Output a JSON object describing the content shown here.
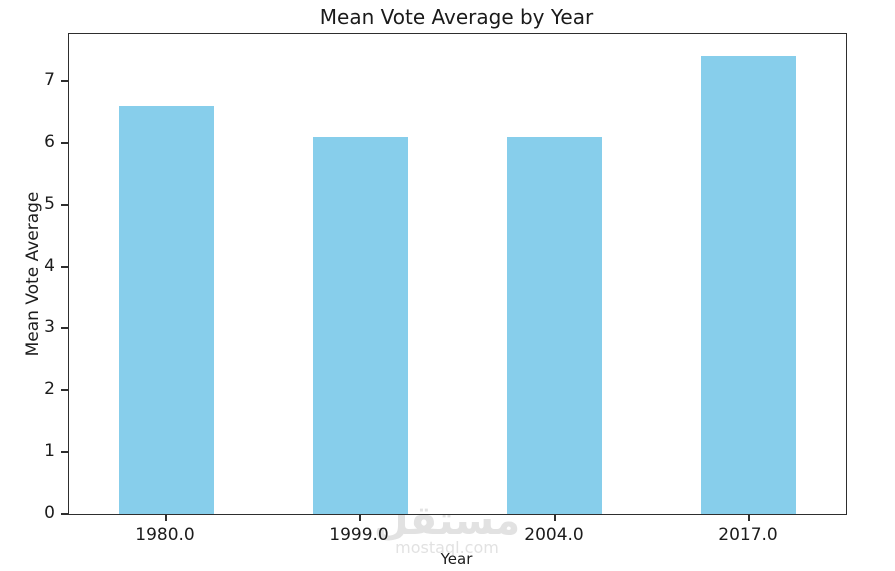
{
  "chart_data": {
    "type": "bar",
    "title": "Mean Vote Average by Year",
    "xlabel": "Year",
    "ylabel": "Mean Vote Average",
    "categories": [
      "1980.0",
      "1999.0",
      "2004.0",
      "2017.0"
    ],
    "values": [
      6.6,
      6.1,
      6.1,
      7.4
    ],
    "yticks": [
      0,
      1,
      2,
      3,
      4,
      5,
      6,
      7
    ],
    "ylim": [
      0,
      7.76
    ],
    "bar_color": "#87CEEB",
    "axis_color": "#2e2e2e",
    "grid": false,
    "legend": false
  },
  "watermark": {
    "logo_text": "مستقل",
    "site": "mostaql.com"
  }
}
